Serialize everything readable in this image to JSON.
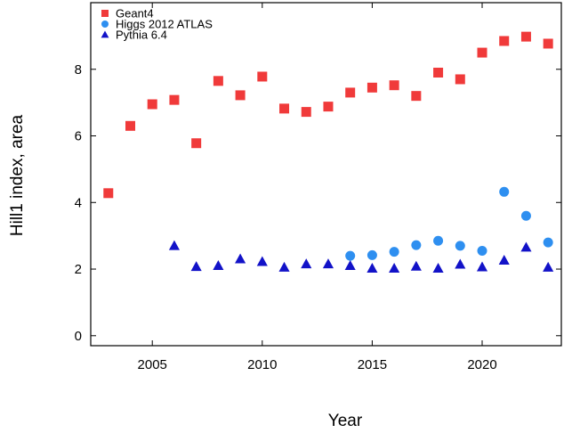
{
  "chart_data": {
    "type": "scatter",
    "title": "",
    "xlabel": "Year",
    "ylabel": "Hill1 index, area",
    "xlim": [
      2002.2,
      2023.6
    ],
    "ylim": [
      -0.3,
      10.0
    ],
    "x_ticks": [
      "2005",
      "2010",
      "2015",
      "2020"
    ],
    "x_tick_values": [
      2005,
      2010,
      2015,
      2020
    ],
    "y_ticks": [
      "0",
      "2",
      "4",
      "6",
      "8"
    ],
    "y_tick_values": [
      0,
      2,
      4,
      6,
      8
    ],
    "grid": false,
    "legend_position": "top-left",
    "series": [
      {
        "name": "Geant4",
        "marker": "square",
        "color": "#f03a3a",
        "x": [
          2003,
          2004,
          2005,
          2006,
          2007,
          2008,
          2009,
          2010,
          2011,
          2012,
          2013,
          2014,
          2015,
          2016,
          2017,
          2018,
          2019,
          2020,
          2021,
          2022,
          2023
        ],
        "y": [
          4.28,
          6.3,
          6.95,
          7.08,
          5.78,
          7.65,
          7.22,
          7.78,
          6.82,
          6.72,
          6.88,
          7.3,
          7.45,
          7.52,
          7.2,
          7.9,
          7.7,
          8.5,
          8.85,
          8.98,
          8.77
        ]
      },
      {
        "name": "Higgs 2012 ATLAS",
        "marker": "circle",
        "color": "#2e8ff0",
        "x": [
          2014,
          2015,
          2016,
          2017,
          2018,
          2019,
          2020,
          2021,
          2022,
          2023
        ],
        "y": [
          2.4,
          2.42,
          2.52,
          2.72,
          2.85,
          2.7,
          2.55,
          4.32,
          3.6,
          2.8
        ]
      },
      {
        "name": "Pythia 6.4",
        "marker": "triangle",
        "color": "#1212c8",
        "x": [
          2006,
          2007,
          2008,
          2009,
          2010,
          2011,
          2012,
          2013,
          2014,
          2015,
          2016,
          2017,
          2018,
          2019,
          2020,
          2021,
          2022,
          2023
        ],
        "y": [
          2.7,
          2.07,
          2.1,
          2.3,
          2.22,
          2.05,
          2.15,
          2.15,
          2.1,
          2.02,
          2.02,
          2.08,
          2.02,
          2.14,
          2.06,
          2.26,
          2.65,
          2.05
        ]
      }
    ]
  }
}
